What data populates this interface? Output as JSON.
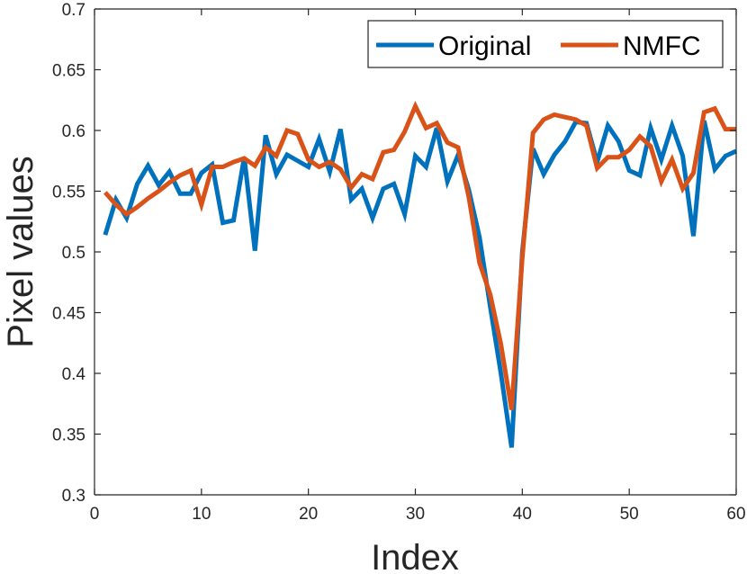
{
  "chart_data": {
    "type": "line",
    "xlabel": "Index",
    "ylabel": "Pixel values",
    "xlim": [
      0,
      60
    ],
    "ylim": [
      0.3,
      0.7
    ],
    "xticks": [
      "0",
      "10",
      "20",
      "30",
      "40",
      "50",
      "60"
    ],
    "yticks": [
      "0.3",
      "0.35",
      "0.4",
      "0.45",
      "0.5",
      "0.55",
      "0.6",
      "0.65",
      "0.7"
    ],
    "grid": false,
    "legend_position": "top-right",
    "x": [
      1,
      2,
      3,
      4,
      5,
      6,
      7,
      8,
      9,
      10,
      11,
      12,
      13,
      14,
      15,
      16,
      17,
      18,
      19,
      20,
      21,
      22,
      23,
      24,
      25,
      26,
      27,
      28,
      29,
      30,
      31,
      32,
      33,
      34,
      35,
      36,
      37,
      38,
      39,
      40,
      41,
      42,
      43,
      44,
      45,
      46,
      47,
      48,
      49,
      50,
      51,
      52,
      53,
      54,
      55,
      56,
      57,
      58,
      59,
      60
    ],
    "series": [
      {
        "name": "Original",
        "color": "#0072BD",
        "values": [
          0.514,
          0.543,
          0.528,
          0.556,
          0.571,
          0.555,
          0.566,
          0.548,
          0.548,
          0.565,
          0.572,
          0.524,
          0.526,
          0.578,
          0.501,
          0.596,
          0.564,
          0.58,
          0.575,
          0.57,
          0.593,
          0.566,
          0.601,
          0.543,
          0.552,
          0.528,
          0.552,
          0.556,
          0.531,
          0.579,
          0.57,
          0.602,
          0.558,
          0.58,
          0.551,
          0.512,
          0.455,
          0.4,
          0.339,
          0.5,
          0.585,
          0.564,
          0.58,
          0.591,
          0.607,
          0.606,
          0.574,
          0.604,
          0.591,
          0.567,
          0.563,
          0.602,
          0.576,
          0.604,
          0.579,
          0.513,
          0.608,
          0.568,
          0.579,
          0.583
        ]
      },
      {
        "name": "NMFC",
        "color": "#D95319",
        "values": [
          0.549,
          0.539,
          0.531,
          0.537,
          0.544,
          0.55,
          0.557,
          0.563,
          0.567,
          0.539,
          0.57,
          0.57,
          0.574,
          0.577,
          0.571,
          0.586,
          0.579,
          0.6,
          0.597,
          0.576,
          0.57,
          0.574,
          0.568,
          0.553,
          0.564,
          0.56,
          0.582,
          0.584,
          0.599,
          0.62,
          0.602,
          0.606,
          0.59,
          0.586,
          0.545,
          0.491,
          0.465,
          0.424,
          0.37,
          0.495,
          0.598,
          0.609,
          0.613,
          0.611,
          0.609,
          0.604,
          0.569,
          0.578,
          0.578,
          0.584,
          0.595,
          0.587,
          0.558,
          0.576,
          0.552,
          0.565,
          0.615,
          0.618,
          0.601,
          0.601
        ]
      }
    ]
  }
}
